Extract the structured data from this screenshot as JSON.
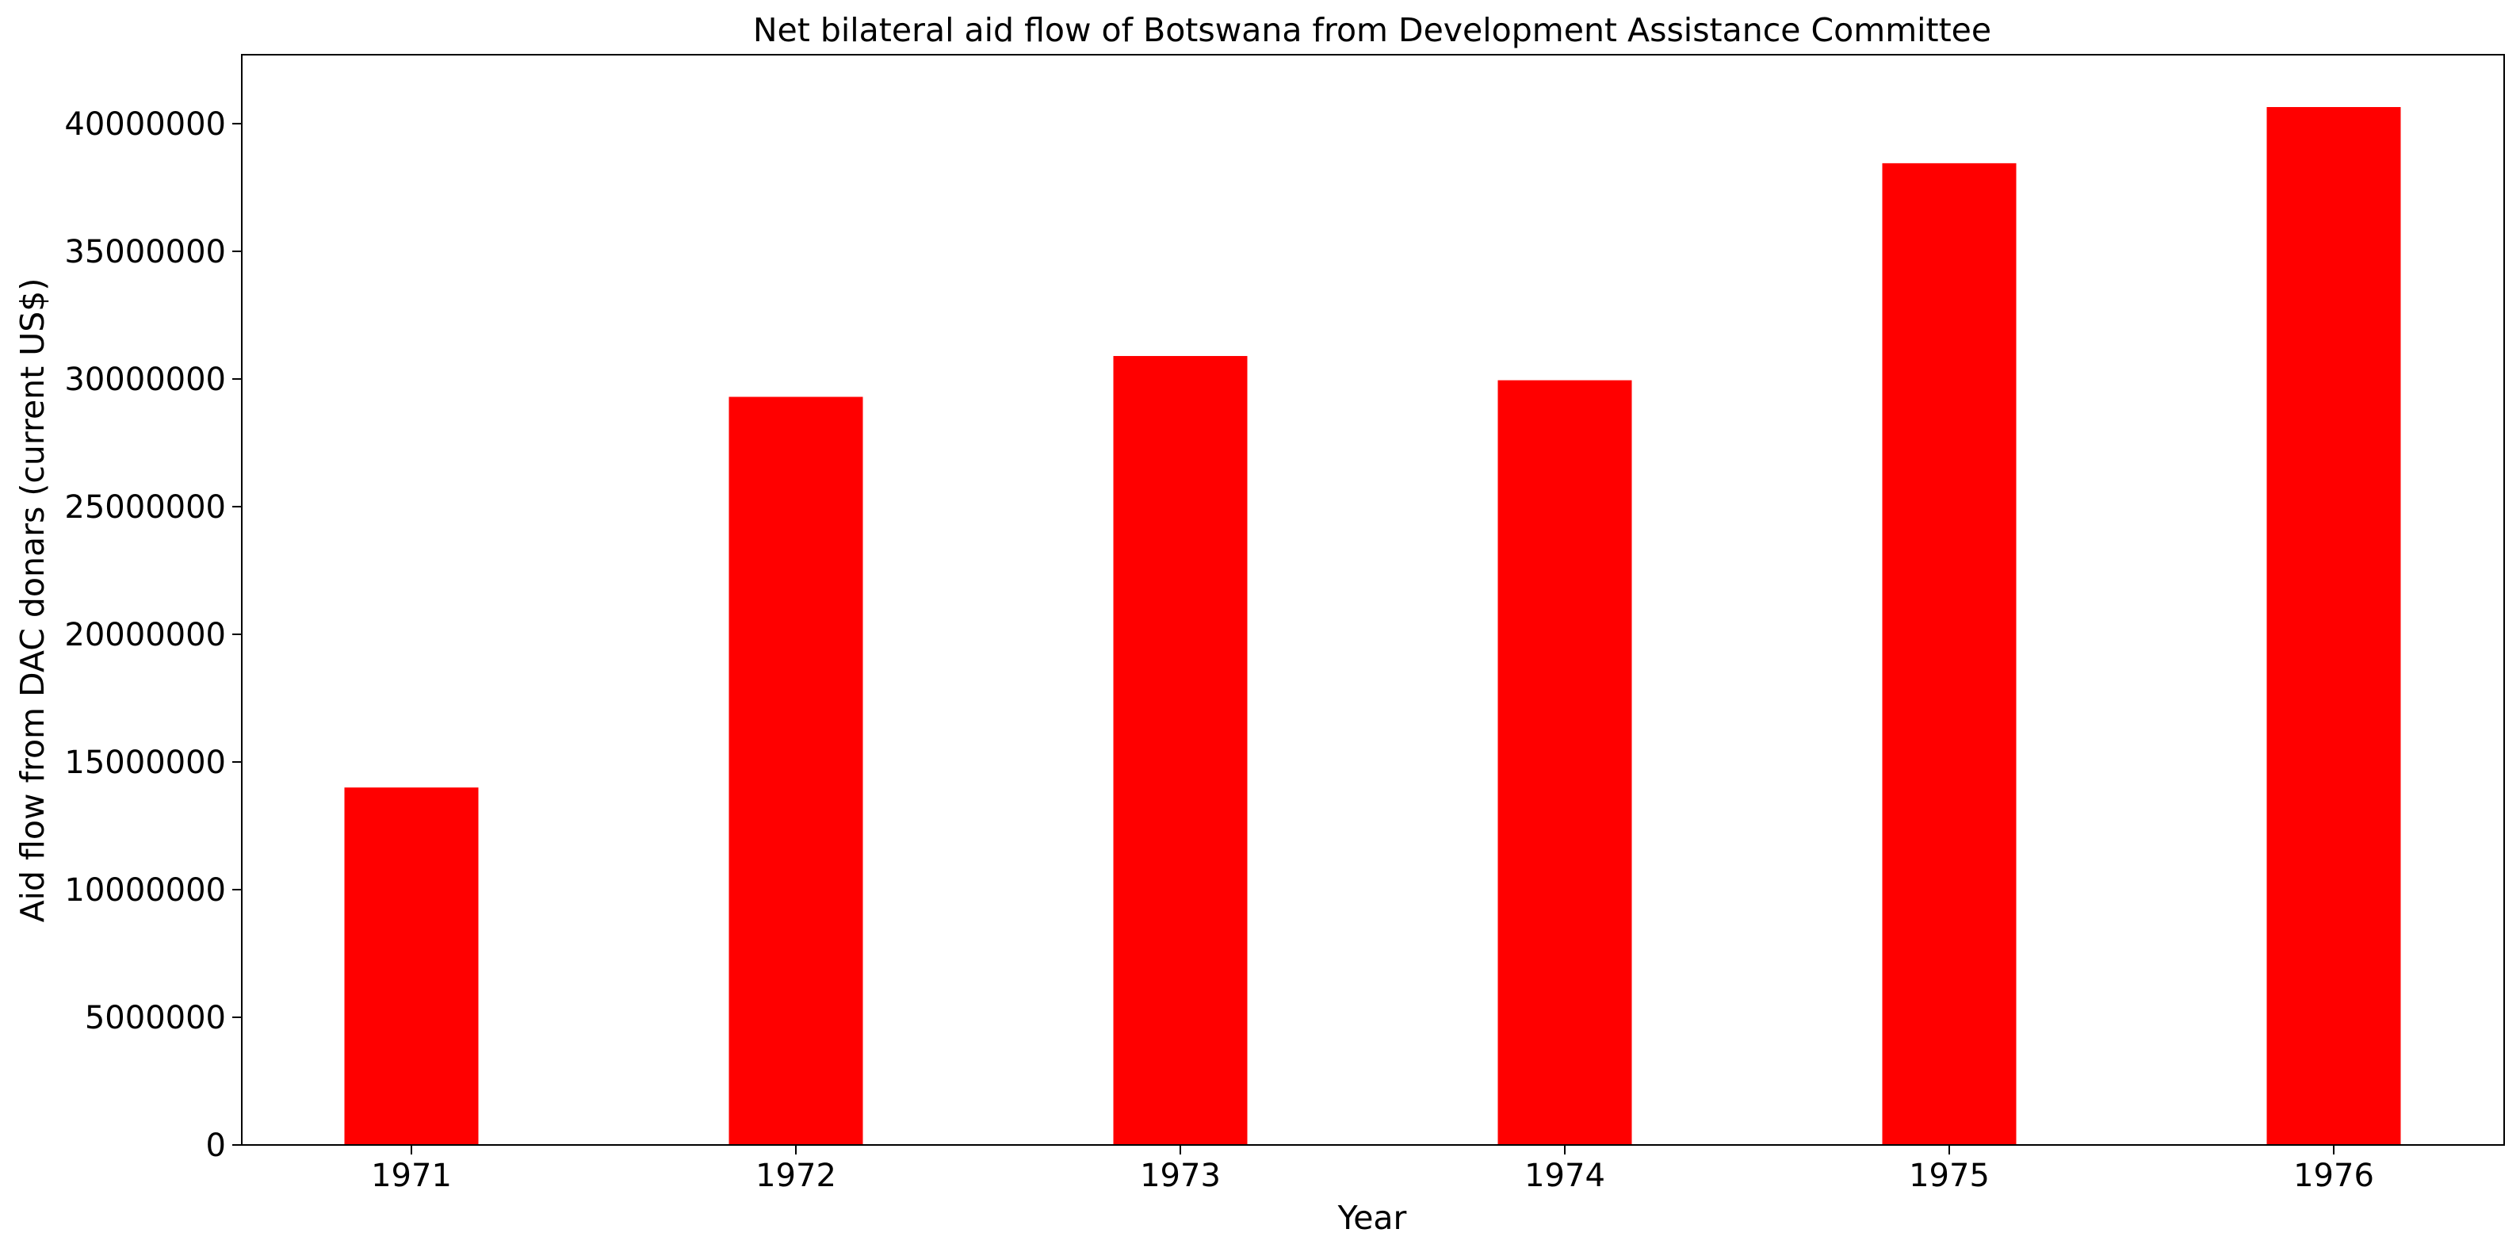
{
  "chart_data": {
    "type": "bar",
    "title": "Net bilateral aid flow of Botswana from Development Assistance Committee",
    "xlabel": "Year",
    "ylabel": "Aid flow from DAC donars (current US$)",
    "categories": [
      "1971",
      "1972",
      "1973",
      "1974",
      "1975",
      "1976"
    ],
    "values": [
      14000000,
      29300000,
      30900000,
      29950000,
      38450000,
      40650000
    ],
    "ylim": [
      0,
      42700000
    ],
    "yticks": [
      0,
      5000000,
      10000000,
      15000000,
      20000000,
      25000000,
      30000000,
      35000000,
      40000000
    ],
    "ytick_labels": [
      "0",
      "5000000",
      "10000000",
      "15000000",
      "20000000",
      "25000000",
      "30000000",
      "35000000",
      "40000000"
    ],
    "bar_color": "#ff0000",
    "grid": false,
    "legend": "none"
  }
}
